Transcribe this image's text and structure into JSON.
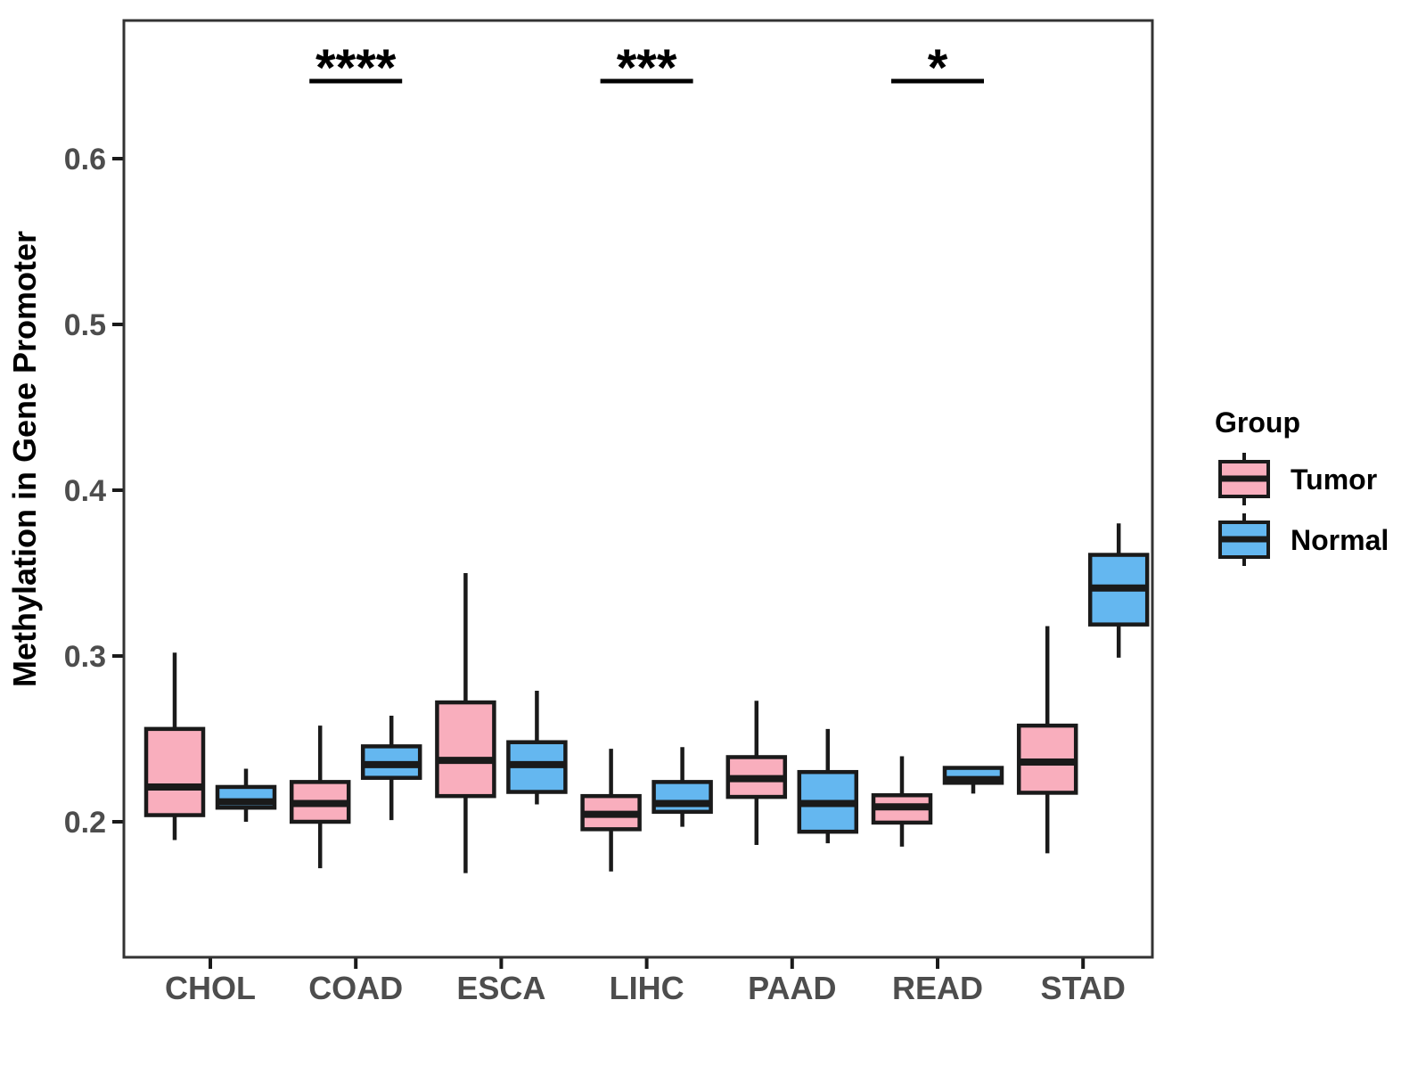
{
  "colors": {
    "tumor_fill": "#F9AEBD",
    "normal_fill": "#64B7F0",
    "box_stroke": "#1A1A1A",
    "panel_border": "#333333",
    "tick_mark": "#1A1A1A",
    "tick_label": "#4D4D4D",
    "axis_title": "#000000",
    "annotation": "#000000"
  },
  "legend": {
    "title": "Group",
    "items": [
      {
        "label": "Tumor",
        "color_key": "tumor_fill"
      },
      {
        "label": "Normal",
        "color_key": "normal_fill"
      }
    ]
  },
  "chart_data": {
    "type": "boxplot",
    "title": "",
    "xlabel": "",
    "ylabel": "Methylation in Gene Promoter",
    "grid": "off",
    "legend_position": "right",
    "ylim": [
      0.12,
      0.68
    ],
    "yticks": [
      0.2,
      0.3,
      0.4,
      0.5,
      0.6
    ],
    "ytick_labels": [
      "0.2",
      "0.3",
      "0.4",
      "0.5",
      "0.6"
    ],
    "categories": [
      "CHOL",
      "COAD",
      "ESCA",
      "LIHC",
      "PAAD",
      "READ",
      "STAD"
    ],
    "series": [
      {
        "name": "Tumor",
        "color_key": "tumor_fill",
        "boxes": [
          {
            "category": "CHOL",
            "whisker_low": 0.189,
            "q1": 0.204,
            "median": 0.221,
            "q3": 0.256,
            "whisker_high": 0.302
          },
          {
            "category": "COAD",
            "whisker_low": 0.172,
            "q1": 0.2,
            "median": 0.211,
            "q3": 0.224,
            "whisker_high": 0.258
          },
          {
            "category": "ESCA",
            "whisker_low": 0.169,
            "q1": 0.2155,
            "median": 0.237,
            "q3": 0.272,
            "whisker_high": 0.35
          },
          {
            "category": "LIHC",
            "whisker_low": 0.17,
            "q1": 0.1955,
            "median": 0.2045,
            "q3": 0.2155,
            "whisker_high": 0.244
          },
          {
            "category": "PAAD",
            "whisker_low": 0.186,
            "q1": 0.215,
            "median": 0.226,
            "q3": 0.239,
            "whisker_high": 0.273
          },
          {
            "category": "READ",
            "whisker_low": 0.185,
            "q1": 0.1995,
            "median": 0.209,
            "q3": 0.216,
            "whisker_high": 0.2395
          },
          {
            "category": "STAD",
            "whisker_low": 0.181,
            "q1": 0.2175,
            "median": 0.236,
            "q3": 0.258,
            "whisker_high": 0.318
          }
        ]
      },
      {
        "name": "Normal",
        "color_key": "normal_fill",
        "boxes": [
          {
            "category": "CHOL",
            "whisker_low": 0.2,
            "q1": 0.2085,
            "median": 0.212,
            "q3": 0.221,
            "whisker_high": 0.232
          },
          {
            "category": "COAD",
            "whisker_low": 0.201,
            "q1": 0.2265,
            "median": 0.2345,
            "q3": 0.2455,
            "whisker_high": 0.264
          },
          {
            "category": "ESCA",
            "whisker_low": 0.2105,
            "q1": 0.218,
            "median": 0.2345,
            "q3": 0.248,
            "whisker_high": 0.279
          },
          {
            "category": "LIHC",
            "whisker_low": 0.197,
            "q1": 0.206,
            "median": 0.211,
            "q3": 0.224,
            "whisker_high": 0.245
          },
          {
            "category": "PAAD",
            "whisker_low": 0.187,
            "q1": 0.194,
            "median": 0.211,
            "q3": 0.23,
            "whisker_high": 0.256
          },
          {
            "category": "READ",
            "whisker_low": 0.217,
            "q1": 0.2235,
            "median": 0.2255,
            "q3": 0.2325,
            "whisker_high": 0.2335
          },
          {
            "category": "STAD",
            "whisker_low": 0.299,
            "q1": 0.319,
            "median": 0.341,
            "q3": 0.361,
            "whisker_high": 0.38
          }
        ]
      }
    ],
    "annotations": [
      {
        "category": "COAD",
        "label": "****"
      },
      {
        "category": "LIHC",
        "label": "***"
      },
      {
        "category": "READ",
        "label": "*"
      }
    ]
  }
}
